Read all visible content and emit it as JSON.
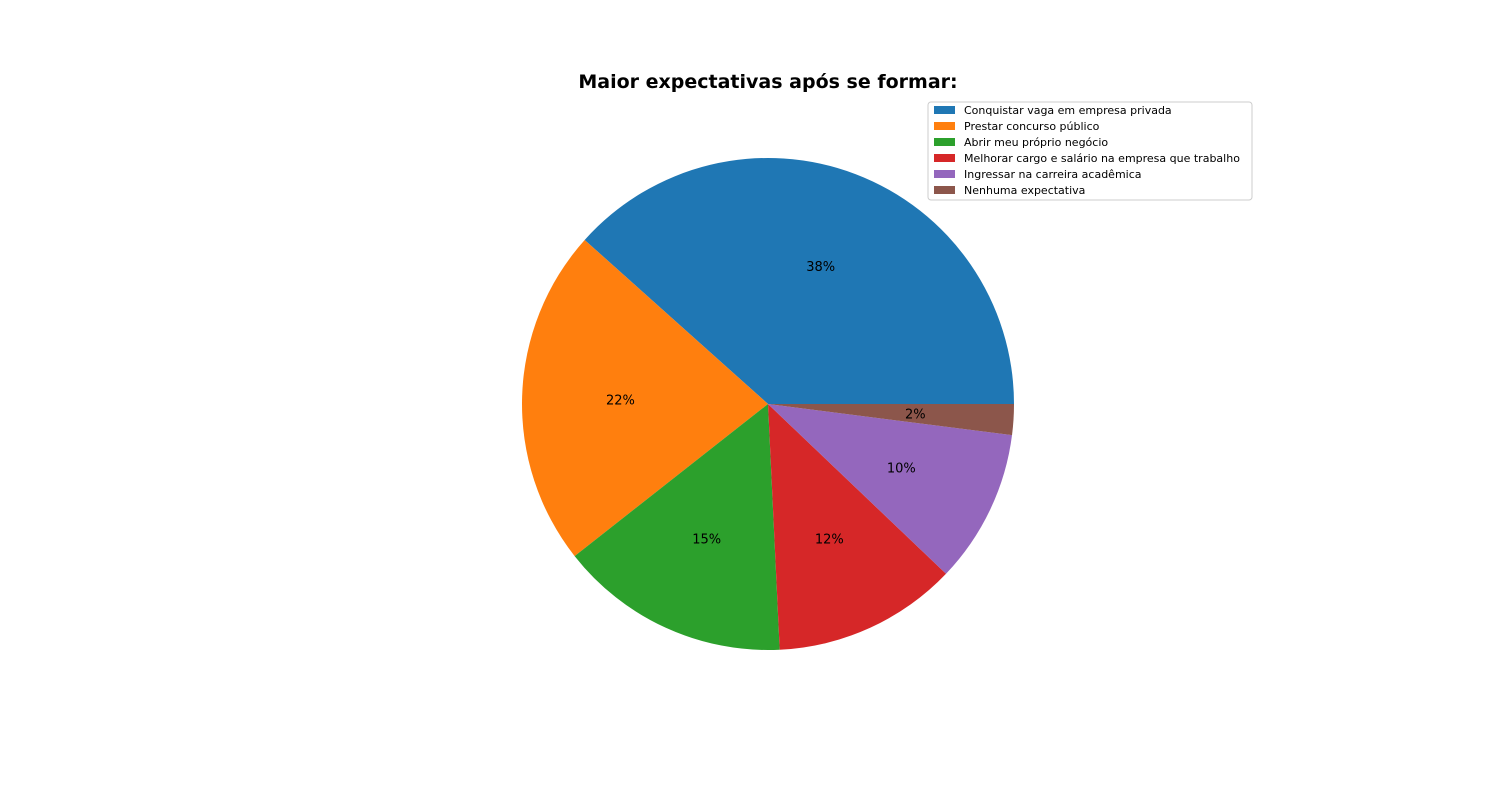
{
  "chart_data": {
    "type": "pie",
    "title": "Maior expectativas após se formar:",
    "start_angle_deg": 0,
    "direction": "counterclockwise",
    "legend_location": "upper-right",
    "slices": [
      {
        "label": "Conquistar vaga em empresa privada",
        "value": 38,
        "pct_label": "38%",
        "color": "#1f77b4"
      },
      {
        "label": "Prestar concurso público",
        "value": 22,
        "pct_label": "22%",
        "color": "#ff7f0e"
      },
      {
        "label": "Abrir meu próprio negócio",
        "value": 15,
        "pct_label": "15%",
        "color": "#2ca02c"
      },
      {
        "label": "Melhorar cargo e salário na empresa que trabalho",
        "value": 12,
        "pct_label": "12%",
        "color": "#d62728"
      },
      {
        "label": "Ingressar na carreira acadêmica",
        "value": 10,
        "pct_label": "10%",
        "color": "#9467bd"
      },
      {
        "label": "Nenhuma expectativa",
        "value": 2,
        "pct_label": "2%",
        "color": "#8c564b"
      }
    ]
  }
}
